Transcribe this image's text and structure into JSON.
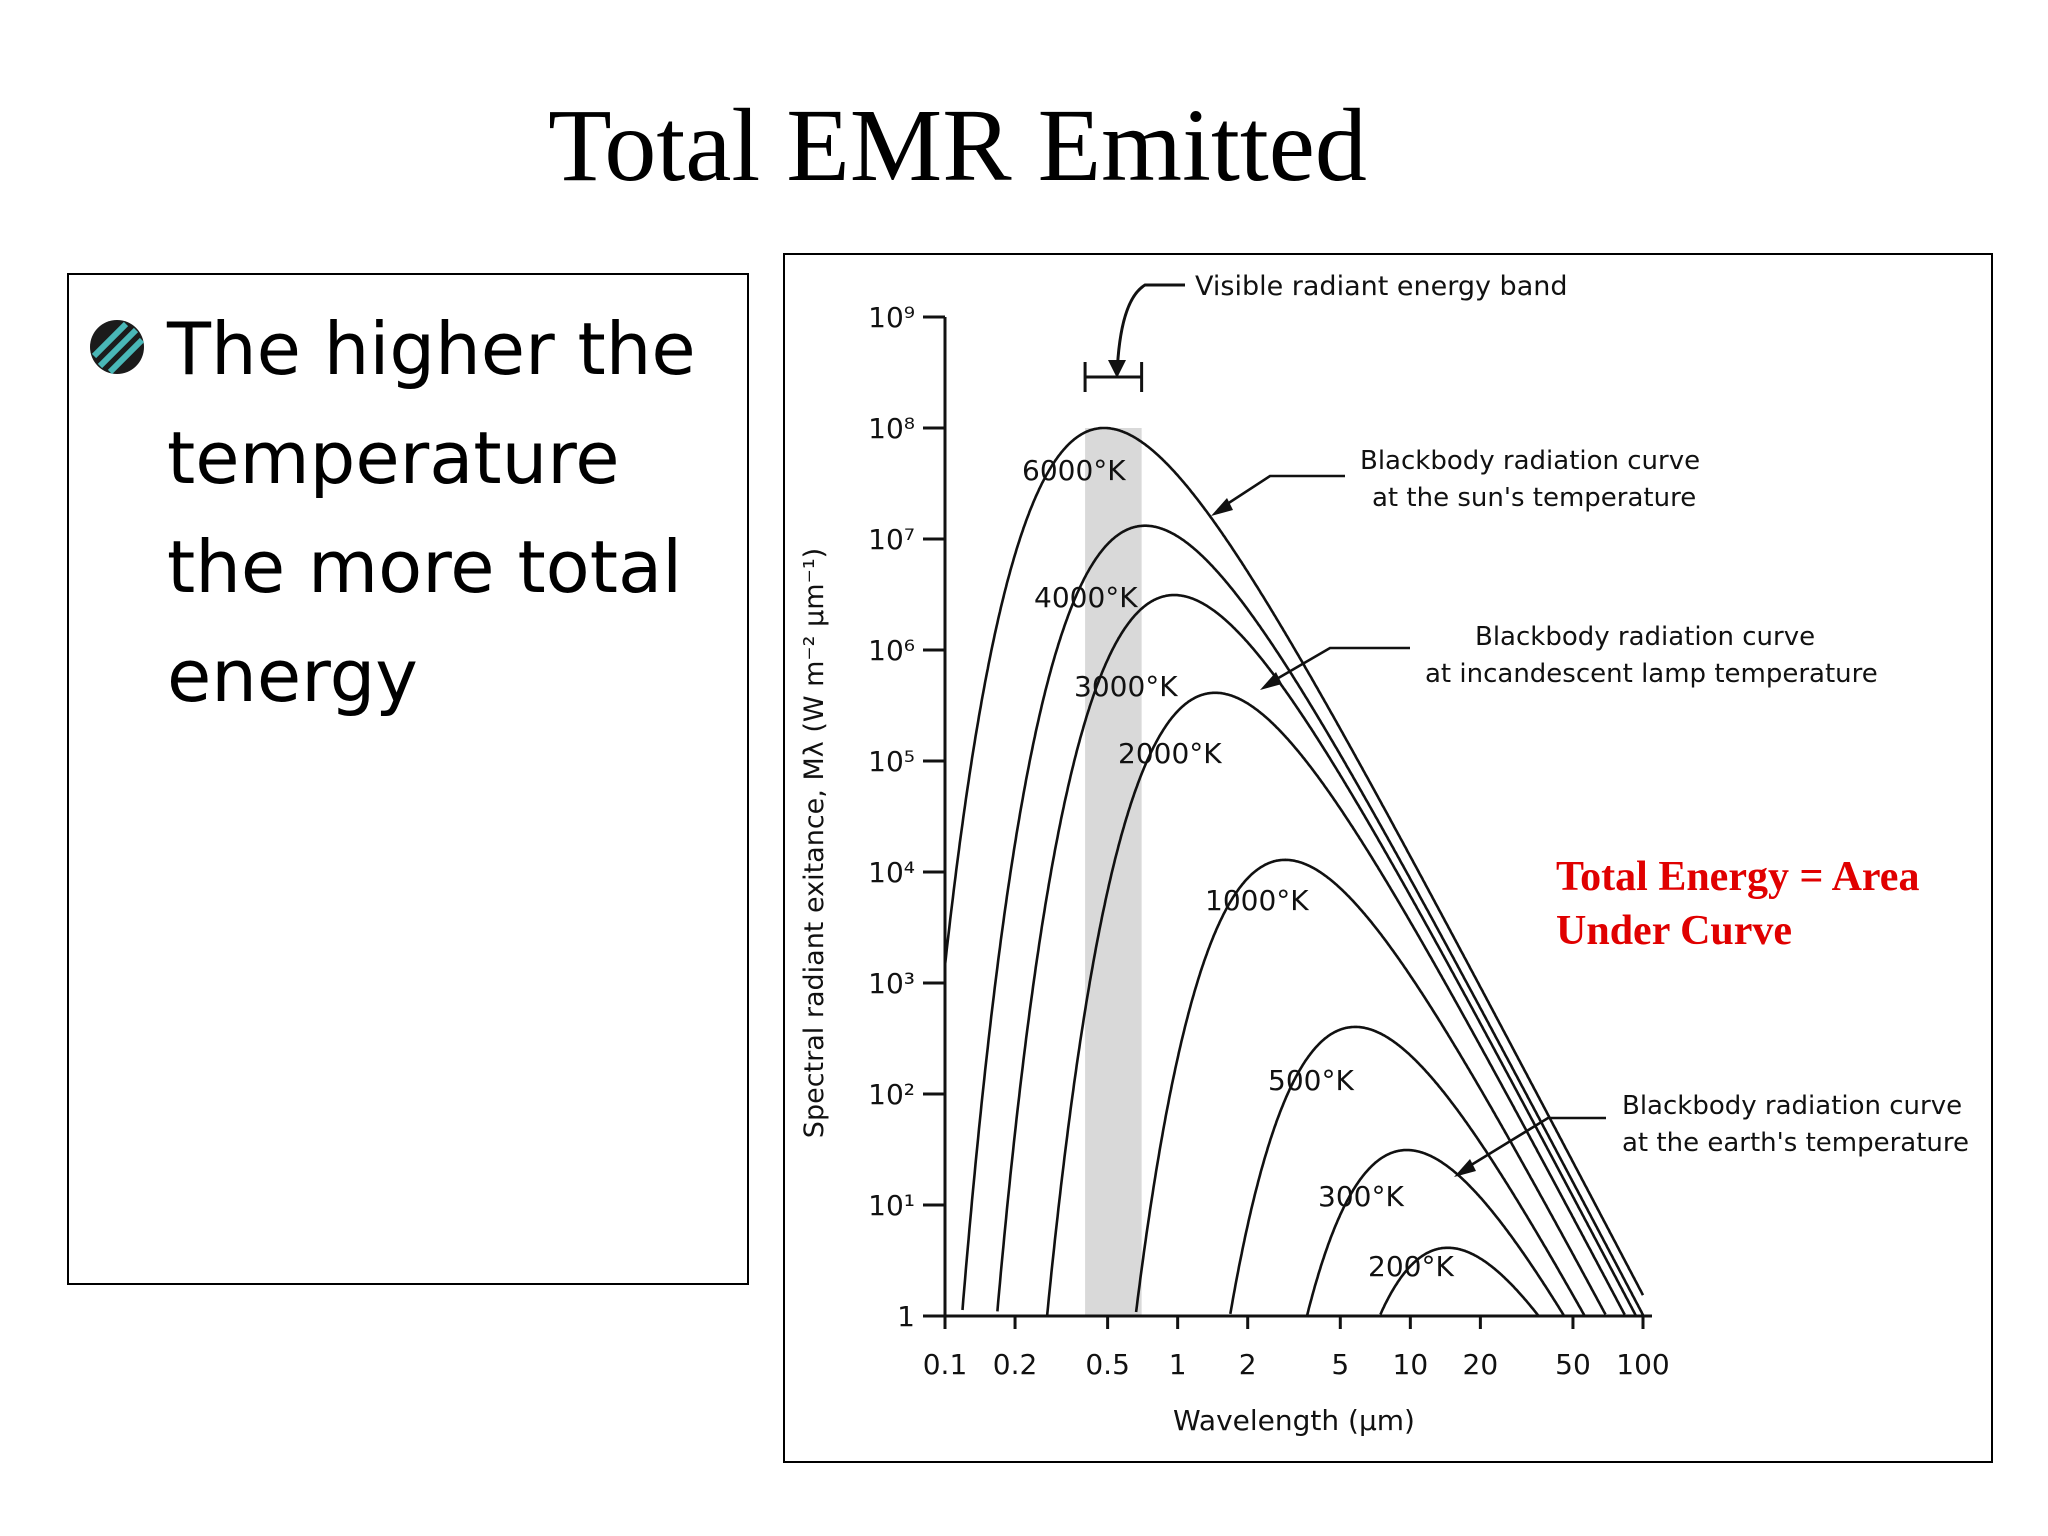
{
  "slide": {
    "title": "Total EMR Emitted",
    "bullet": "The higher the temperature the more total energy",
    "overlay": "Total Energy = Area Under Curve",
    "accent_color": "#e00000"
  },
  "chart_data": {
    "type": "line",
    "xscale": "log",
    "yscale": "log",
    "xlim": [
      0.1,
      100
    ],
    "ylim": [
      1,
      1000000000
    ],
    "xlabel": "Wavelength (μm)",
    "ylabel": "Spectral radiant exitance, Mλ (W m⁻² μm⁻¹)",
    "x_ticks": [
      "0.1",
      "0.2",
      "0.5",
      "1",
      "2",
      "5",
      "10",
      "20",
      "50",
      "100"
    ],
    "y_ticks": [
      "1",
      "10¹",
      "10²",
      "10³",
      "10⁴",
      "10⁵",
      "10⁶",
      "10⁷",
      "10⁸",
      "10⁹"
    ],
    "visible_band": {
      "label": "Visible radiant energy band",
      "range_um": [
        0.4,
        0.7
      ]
    },
    "series": [
      {
        "name": "6000°K",
        "temperature": 6000
      },
      {
        "name": "4000°K",
        "temperature": 4000
      },
      {
        "name": "3000°K",
        "temperature": 3000
      },
      {
        "name": "2000°K",
        "temperature": 2000
      },
      {
        "name": "1000°K",
        "temperature": 1000
      },
      {
        "name": "500°K",
        "temperature": 500
      },
      {
        "name": "300°K",
        "temperature": 300
      },
      {
        "name": "200°K",
        "temperature": 200
      }
    ],
    "annotations": [
      {
        "id": "sun",
        "text": [
          "Blackbody radiation curve",
          "at the sun's temperature"
        ]
      },
      {
        "id": "lamp",
        "text": [
          "Blackbody radiation curve",
          "at incandescent lamp temperature"
        ]
      },
      {
        "id": "earth",
        "text": [
          "Blackbody radiation curve",
          "at the earth's temperature"
        ]
      }
    ]
  }
}
